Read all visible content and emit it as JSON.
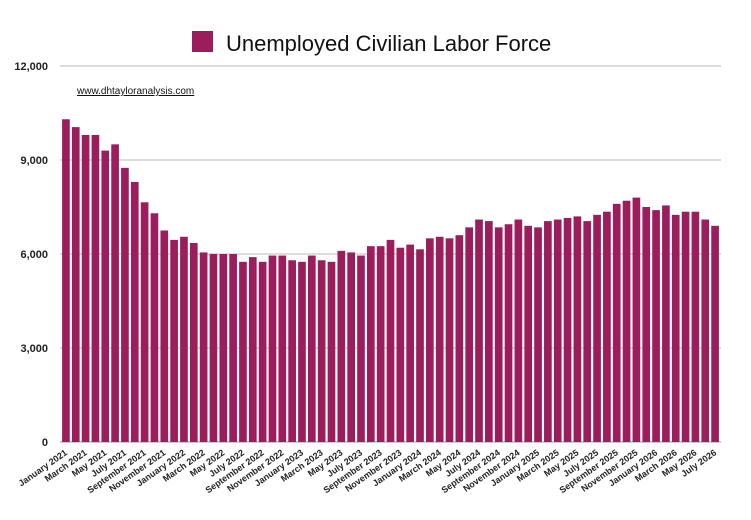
{
  "chart_data": {
    "type": "bar",
    "title": "Unemployed Civilian Labor Force",
    "legend": {
      "label": "Unemployed Civilian Labor Force",
      "placement": "top-center"
    },
    "watermark": "www.dhtayloranalysis.com",
    "xlabel": "",
    "ylabel": "",
    "ylim": [
      0,
      12000
    ],
    "yticks": [
      "0",
      "3,000",
      "6,000",
      "9,000",
      "12,000"
    ],
    "ytick_values": [
      0,
      3000,
      6000,
      9000,
      12000
    ],
    "grid": true,
    "bar_color": "#9b1d5c",
    "categories": [
      "January 2021",
      "February 2021",
      "March 2021",
      "April 2021",
      "May 2021",
      "June 2021",
      "July 2021",
      "August 2021",
      "September 2021",
      "October 2021",
      "November 2021",
      "December 2021",
      "January 2022",
      "February 2022",
      "March 2022",
      "April 2022",
      "May 2022",
      "June 2022",
      "July 2022",
      "August 2022",
      "September 2022",
      "October 2022",
      "November 2022",
      "December 2022",
      "January 2023",
      "February 2023",
      "March 2023",
      "April 2023",
      "May 2023",
      "June 2023",
      "July 2023",
      "August 2023",
      "September 2023",
      "October 2023",
      "November 2023",
      "December 2023",
      "January 2024",
      "February 2024",
      "March 2024",
      "April 2024",
      "May 2024",
      "June 2024",
      "July 2024",
      "August 2024",
      "September 2024",
      "October 2024",
      "November 2024",
      "December 2024",
      "January 2025",
      "February 2025",
      "March 2025",
      "April 2025",
      "May 2025",
      "June 2025",
      "July 2025",
      "August 2025",
      "September 2025",
      "October 2025",
      "November 2025",
      "December 2025",
      "January 2026",
      "February 2026",
      "March 2026",
      "April 2026",
      "May 2026",
      "June 2026",
      "July 2026"
    ],
    "visible_x_labels": [
      "January 2021",
      "March 2021",
      "May 2021",
      "July 2021",
      "September 2021",
      "November 2021",
      "January 2022",
      "March 2022",
      "May 2022",
      "July 2022",
      "September 2022",
      "November 2022",
      "January 2023",
      "March 2023",
      "May 2023",
      "July 2023",
      "September 2023",
      "November 2023",
      "January 2024",
      "March 2024",
      "May 2024",
      "July 2024",
      "September 2024",
      "November 2024",
      "January 2025",
      "March 2025",
      "May 2025",
      "July 2025",
      "September 2025",
      "November 2025",
      "January 2026",
      "March 2026",
      "May 2026",
      "July 2026"
    ],
    "values": [
      10300,
      10050,
      9800,
      9800,
      9300,
      9500,
      8750,
      8300,
      7650,
      7300,
      6750,
      6450,
      6550,
      6350,
      6050,
      6000,
      6000,
      6000,
      5750,
      5900,
      5750,
      5950,
      5950,
      5800,
      5750,
      5950,
      5800,
      5750,
      6100,
      6050,
      5950,
      6250,
      6250,
      6450,
      6200,
      6300,
      6150,
      6500,
      6550,
      6500,
      6600,
      6850,
      7100,
      7050,
      6850,
      6950,
      7100,
      6900,
      6850,
      7050,
      7100,
      7150,
      7200,
      7050,
      7250,
      7350,
      7600,
      7700,
      7800,
      7500,
      7400,
      7550,
      7250,
      7350,
      7350,
      7100,
      6900
    ]
  }
}
